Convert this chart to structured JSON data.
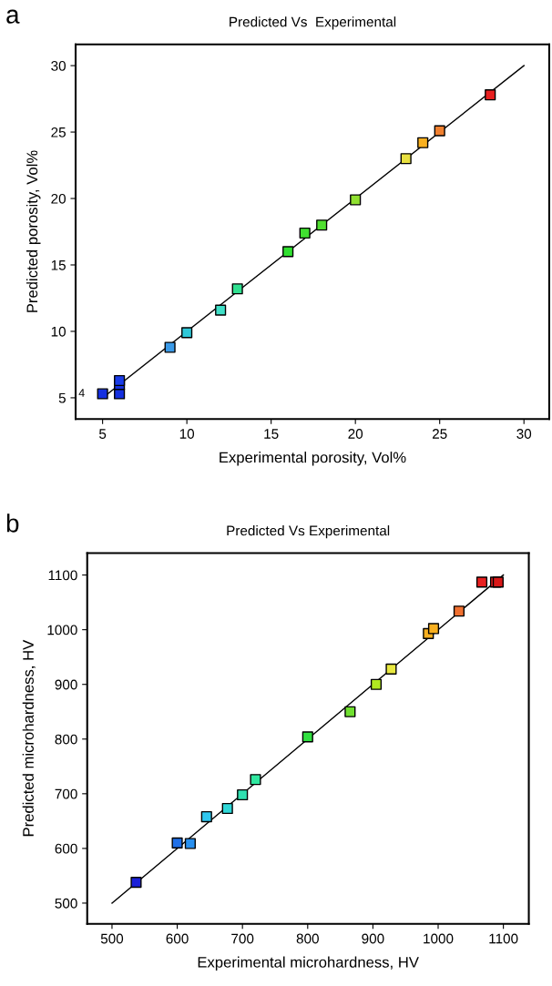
{
  "chart_data": [
    {
      "type": "scatter",
      "title": "Predicted Vs  Experimental",
      "xlabel": "Experimental porosity, Vol%",
      "ylabel": "Predicted porosity, Vol%",
      "xlim": [
        3.4,
        31.5
      ],
      "ylim": [
        3.4,
        31.6
      ],
      "xticks": [
        5,
        10,
        15,
        20,
        25,
        30
      ],
      "yticks": [
        5,
        10,
        15,
        20,
        25,
        30
      ],
      "annotations": [
        "a",
        {
          "text": "4",
          "x": 5,
          "y": 5.3
        }
      ],
      "series": [
        {
          "marker": "square",
          "x": [
            5,
            6,
            6,
            6,
            9,
            10,
            12,
            13,
            16,
            17,
            18,
            20,
            23,
            24,
            25,
            28
          ],
          "values": [
            5.3,
            5.3,
            6.0,
            6.3,
            8.8,
            9.9,
            11.6,
            13.2,
            16.0,
            17.4,
            18.0,
            19.9,
            23.0,
            24.2,
            25.1,
            27.8
          ],
          "colors": [
            "#1530e0",
            "#1530e0",
            "#1530e0",
            "#1a3ce8",
            "#3a9ae8",
            "#30c8d8",
            "#40e0c8",
            "#30e090",
            "#30e030",
            "#40e030",
            "#50e030",
            "#90e030",
            "#e8e040",
            "#f8b020",
            "#f08030",
            "#e82020"
          ]
        },
        {
          "type": "line",
          "x": [
            5,
            30
          ],
          "values": [
            5,
            30
          ],
          "color": "#000000",
          "marker": "none"
        }
      ]
    },
    {
      "type": "scatter",
      "title": "Predicted Vs Experimental",
      "xlabel": "Experimental microhardness, HV",
      "ylabel": "Predicted microhardness, HV",
      "xlim": [
        462,
        1139
      ],
      "ylim": [
        462,
        1140
      ],
      "xticks": [
        500,
        600,
        700,
        800,
        900,
        1000,
        1100
      ],
      "yticks": [
        500,
        600,
        700,
        800,
        900,
        1000,
        1100
      ],
      "annotations": [
        "b"
      ],
      "series": [
        {
          "marker": "square",
          "x": [
            537,
            600,
            620,
            645,
            677,
            700,
            720,
            800,
            865,
            905,
            928,
            985,
            993,
            1032,
            1067,
            1088,
            1092
          ],
          "values": [
            538,
            610,
            609,
            658,
            673,
            698,
            726,
            804,
            850,
            900,
            928,
            993,
            1002,
            1034,
            1087,
            1087,
            1087
          ],
          "colors": [
            "#1a20d8",
            "#2070e8",
            "#2890f0",
            "#30c8f0",
            "#30d8d8",
            "#30e0b0",
            "#30e8a0",
            "#30e040",
            "#70e030",
            "#b0e820",
            "#e8e840",
            "#f8b020",
            "#f8b020",
            "#f07030",
            "#e82020",
            "#e82020",
            "#d81818"
          ]
        },
        {
          "type": "line",
          "x": [
            500,
            1100
          ],
          "values": [
            500,
            1100
          ],
          "color": "#000000",
          "marker": "none"
        }
      ]
    }
  ]
}
